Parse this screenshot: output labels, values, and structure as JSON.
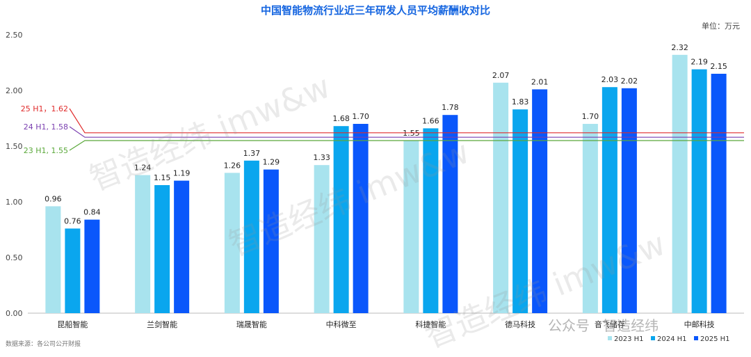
{
  "header": {
    "title": "中国智能物流行业近三年研发人员平均薪酬收对比",
    "unit": "单位：万元"
  },
  "footer": {
    "source": "数据来源：各公司公开财报"
  },
  "watermark": {
    "text": "智造经纬 imw&w",
    "brand": "公众号 · 智造经纬"
  },
  "colors": {
    "series": [
      "#a8e3ee",
      "#0aa6ee",
      "#0a57fb"
    ],
    "ref_25": "#e02b2b",
    "ref_24": "#7a3fb0",
    "ref_23": "#5aa83a"
  },
  "chart_data": {
    "type": "bar",
    "title": "中国智能物流行业近三年研发人员平均薪酬收对比",
    "ylabel": "单位：万元",
    "ylim": [
      0,
      2.5
    ],
    "yticks": [
      "0.00",
      "0.50",
      "1.00",
      "1.50",
      "2.00",
      "2.50"
    ],
    "grid": false,
    "legend_position": "bottom-right",
    "categories": [
      "昆船智能",
      "兰剑智能",
      "瑞晟智能",
      "中科微至",
      "科捷智能",
      "德马科技",
      "音飞储存",
      "中邮科技"
    ],
    "series": [
      {
        "name": "2023 H1",
        "values": [
          0.96,
          1.24,
          1.26,
          1.33,
          1.55,
          2.07,
          1.7,
          2.32
        ]
      },
      {
        "name": "2024 H1",
        "values": [
          0.76,
          1.15,
          1.37,
          1.68,
          1.66,
          1.83,
          2.03,
          2.19
        ]
      },
      {
        "name": "2025 H1",
        "values": [
          0.84,
          1.19,
          1.29,
          1.7,
          1.78,
          2.01,
          2.02,
          2.15
        ]
      }
    ],
    "reference_lines": [
      {
        "label": "25 H1，1.62",
        "value": 1.62
      },
      {
        "label": "24 H1, 1.58",
        "value": 1.58
      },
      {
        "label": "23 H1, 1.55",
        "value": 1.55
      }
    ]
  }
}
